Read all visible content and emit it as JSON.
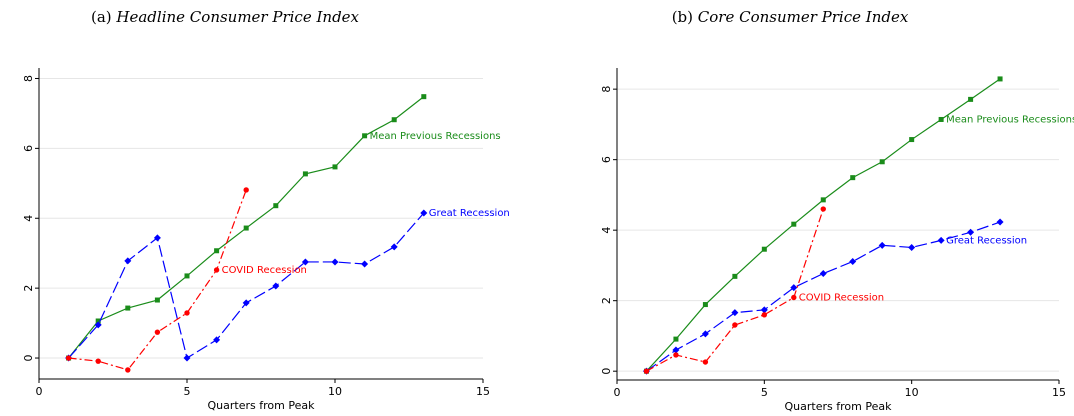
{
  "charts": [
    {
      "type": "line",
      "panel": "(a)",
      "title": "Headline Consumer Price Index",
      "x_label": "Quarters from Peak",
      "x": [
        1,
        2,
        3,
        4,
        5,
        6,
        7,
        8,
        9,
        10,
        11,
        12,
        13
      ],
      "xlim": [
        0,
        15
      ],
      "xticks": [
        0,
        5,
        10,
        15
      ],
      "ylim": [
        -0.6,
        8.3
      ],
      "yticks": [
        0,
        2,
        4,
        6,
        8
      ],
      "grid": true,
      "series": [
        {
          "name": "Mean Previous Recessions",
          "color": "#1a8c1a",
          "values": [
            0,
            1.06,
            1.43,
            1.66,
            2.35,
            3.07,
            3.72,
            4.36,
            5.27,
            5.47,
            6.36,
            6.82,
            7.48
          ]
        },
        {
          "name": "Great Recession",
          "color": "#0000ff",
          "values": [
            0,
            0.95,
            2.78,
            3.44,
            0,
            0.52,
            1.58,
            2.06,
            2.75,
            2.75,
            2.69,
            3.18,
            4.15
          ]
        },
        {
          "name": "COVID Recession",
          "color": "#ff0000",
          "values": [
            0,
            -0.09,
            -0.34,
            0.74,
            1.29,
            2.52,
            4.81,
            null,
            null,
            null,
            null,
            null,
            null
          ]
        }
      ]
    },
    {
      "type": "line",
      "panel": "(b)",
      "title": "Core Consumer Price Index",
      "x_label": "Quarters from Peak",
      "x": [
        1,
        2,
        3,
        4,
        5,
        6,
        7,
        8,
        9,
        10,
        11,
        12,
        13
      ],
      "xlim": [
        0,
        15
      ],
      "xticks": [
        0,
        5,
        10,
        15
      ],
      "ylim": [
        -0.25,
        8.6
      ],
      "yticks": [
        0,
        2,
        4,
        6,
        8
      ],
      "grid": true,
      "series": [
        {
          "name": "Mean Previous Recessions",
          "color": "#1a8c1a",
          "values": [
            0,
            0.91,
            1.89,
            2.69,
            3.46,
            4.17,
            4.86,
            5.49,
            5.94,
            6.57,
            7.14,
            7.71,
            8.29
          ]
        },
        {
          "name": "Great Recession",
          "color": "#0000ff",
          "values": [
            0,
            0.6,
            1.06,
            1.66,
            1.74,
            2.37,
            2.77,
            3.11,
            3.57,
            3.51,
            3.71,
            3.94,
            4.23
          ]
        },
        {
          "name": "COVID Recession",
          "color": "#ff0000",
          "values": [
            0,
            0.46,
            0.26,
            1.31,
            1.6,
            2.09,
            4.6,
            null,
            null,
            null,
            null,
            null,
            null
          ]
        }
      ]
    }
  ]
}
